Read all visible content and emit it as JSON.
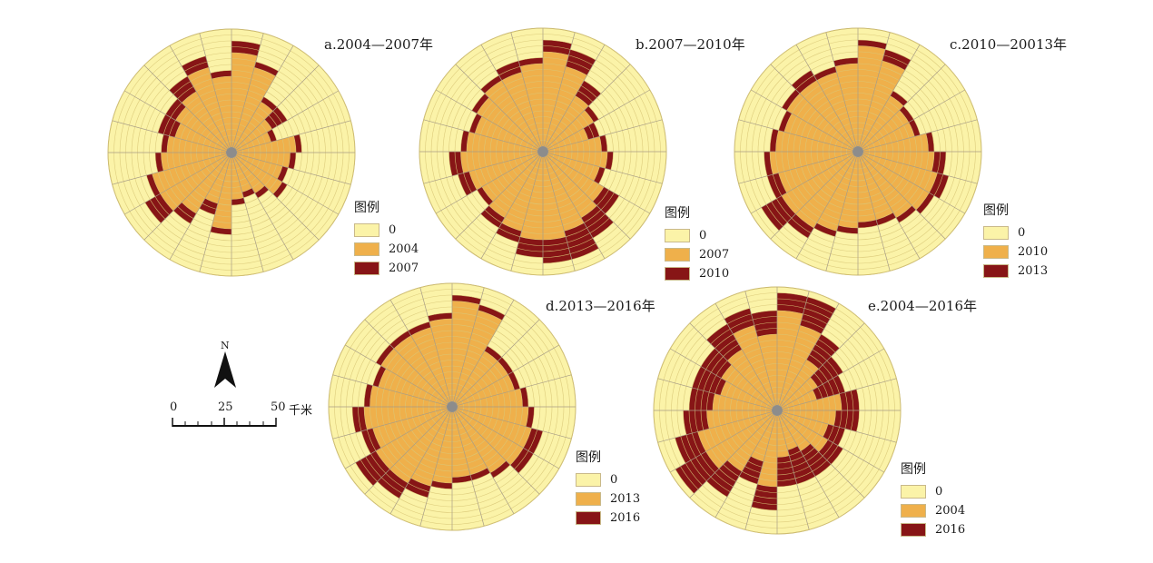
{
  "colors": {
    "background_ring": "#FBF3A8",
    "base": "#EFB04B",
    "growth": "#871516",
    "ring_line": "#d9c878",
    "spoke": "#a89d86",
    "center": "#8c8c8c"
  },
  "rose_config": {
    "sectors": 24,
    "rings": 20
  },
  "north_arrow": {
    "label": "N"
  },
  "scale_bar": {
    "ticks": [
      "0",
      "25",
      "50"
    ],
    "unit": "千米"
  },
  "panels": [
    {
      "id": "a",
      "title": "a.2004—2007年",
      "legend": {
        "title": "图例",
        "items": [
          {
            "label": "0",
            "color": "#FBF3A8"
          },
          {
            "label": "2004",
            "color": "#EFB04B"
          },
          {
            "label": "2007",
            "color": "#871516"
          }
        ]
      },
      "base": [
        16,
        14,
        9,
        7,
        6,
        10,
        9,
        8,
        9,
        7,
        6,
        7,
        12,
        8,
        11,
        13,
        13,
        11,
        10,
        9,
        10,
        11,
        14,
        12
      ],
      "extra": [
        2,
        1,
        1,
        3,
        1,
        1,
        1,
        1,
        1,
        1,
        1,
        1,
        1,
        2,
        2,
        3,
        1,
        1,
        1,
        3,
        2,
        3,
        2,
        1
      ]
    },
    {
      "id": "b",
      "title": "b.2007—2010年",
      "legend": {
        "title": "图例",
        "items": [
          {
            "label": "0",
            "color": "#FBF3A8"
          },
          {
            "label": "2007",
            "color": "#EFB04B"
          },
          {
            "label": "2010",
            "color": "#871516"
          }
        ]
      },
      "base": [
        16,
        14,
        10,
        9,
        7,
        9,
        10,
        9,
        11,
        12,
        13,
        14,
        14,
        13,
        12,
        11,
        12,
        13,
        12,
        11,
        12,
        13,
        13,
        14
      ],
      "extra": [
        2,
        3,
        3,
        1,
        2,
        1,
        1,
        1,
        3,
        4,
        5,
        4,
        3,
        2,
        2,
        1,
        2,
        2,
        1,
        1,
        1,
        1,
        2,
        1
      ]
    },
    {
      "id": "c",
      "title": "c.2010—20013年",
      "legend": {
        "title": "图例",
        "items": [
          {
            "label": "0",
            "color": "#FBF3A8"
          },
          {
            "label": "2010",
            "color": "#EFB04B"
          },
          {
            "label": "2013",
            "color": "#871516"
          }
        ]
      },
      "base": [
        17,
        15,
        10,
        9,
        9,
        11,
        12,
        13,
        13,
        12,
        11,
        11,
        12,
        13,
        14,
        14,
        13,
        14,
        13,
        12,
        13,
        13,
        13,
        14
      ],
      "extra": [
        1,
        2,
        1,
        1,
        1,
        1,
        2,
        2,
        1,
        1,
        1,
        1,
        1,
        1,
        2,
        4,
        2,
        1,
        1,
        1,
        1,
        2,
        1,
        1
      ]
    },
    {
      "id": "d",
      "title": "d.2013—2016年",
      "legend": {
        "title": "图例",
        "items": [
          {
            "label": "0",
            "color": "#FBF3A8"
          },
          {
            "label": "2013",
            "color": "#EFB04B"
          },
          {
            "label": "2016",
            "color": "#871516"
          }
        ]
      },
      "base": [
        17,
        16,
        10,
        10,
        10,
        11,
        12,
        13,
        13,
        12,
        11,
        11,
        12,
        13,
        14,
        14,
        13,
        14,
        13,
        12,
        13,
        13,
        13,
        14
      ],
      "extra": [
        1,
        1,
        1,
        1,
        1,
        1,
        1,
        2,
        2,
        1,
        1,
        1,
        1,
        2,
        3,
        4,
        2,
        2,
        1,
        1,
        1,
        1,
        1,
        1
      ]
    },
    {
      "id": "e",
      "title": "e.2004—2016年",
      "legend": {
        "title": "图例",
        "items": [
          {
            "label": "0",
            "color": "#FBF3A8"
          },
          {
            "label": "2004",
            "color": "#EFB04B"
          },
          {
            "label": "2016",
            "color": "#871516"
          }
        ]
      },
      "base": [
        16,
        14,
        9,
        7,
        6,
        10,
        9,
        8,
        9,
        7,
        6,
        7,
        12,
        8,
        11,
        13,
        13,
        11,
        10,
        9,
        10,
        11,
        14,
        12
      ],
      "extra": [
        3,
        5,
        5,
        5,
        5,
        3,
        4,
        3,
        3,
        5,
        6,
        5,
        4,
        4,
        5,
        6,
        4,
        4,
        4,
        5,
        4,
        5,
        3,
        4
      ]
    }
  ]
}
